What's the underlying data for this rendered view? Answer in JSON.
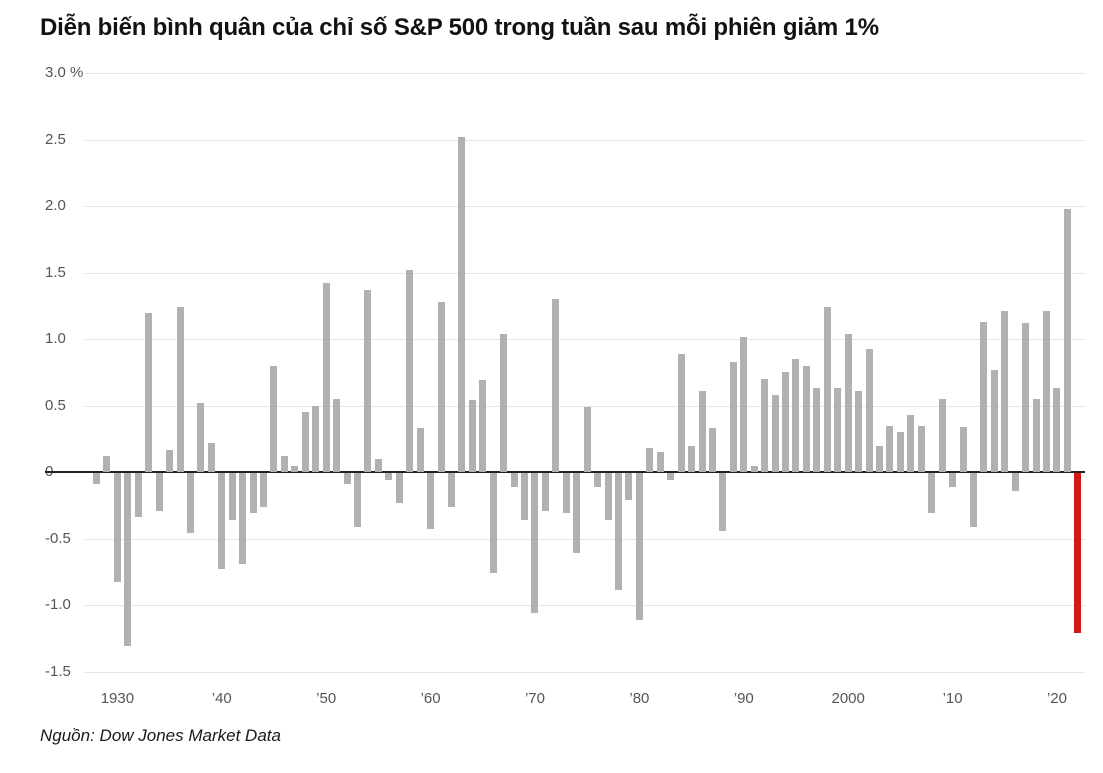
{
  "title": "Diễn biến bình quân của chỉ số S&P 500 trong tuần sau mỗi phiên giảm 1%",
  "source": "Nguồn: Dow Jones Market Data",
  "chart_data": {
    "type": "bar",
    "title": "Diễn biến bình quân của chỉ số S&P 500 trong tuần sau mỗi phiên giảm 1%",
    "xlabel": "",
    "ylabel": "%",
    "ylim": [
      -1.5,
      3.0
    ],
    "grid": true,
    "legend": "none",
    "start_year": 1928,
    "end_year": 2022,
    "values": [
      -0.08,
      0.12,
      -0.82,
      -1.3,
      -0.33,
      1.2,
      -0.28,
      0.17,
      1.24,
      -0.45,
      0.52,
      0.22,
      -0.72,
      -0.35,
      -0.68,
      -0.3,
      -0.25,
      0.8,
      0.12,
      0.05,
      0.45,
      0.5,
      1.42,
      0.55,
      -0.08,
      -0.4,
      1.37,
      0.1,
      -0.05,
      -0.22,
      1.52,
      0.33,
      -0.42,
      1.28,
      -0.25,
      2.52,
      0.54,
      0.69,
      -0.75,
      1.04,
      -0.1,
      -0.35,
      -1.05,
      -0.28,
      1.3,
      -0.3,
      -0.6,
      0.49,
      -0.1,
      -0.35,
      -0.88,
      -0.2,
      -1.1,
      0.18,
      0.15,
      -0.05,
      0.89,
      0.2,
      0.61,
      0.33,
      -0.43,
      0.83,
      1.02,
      0.05,
      0.7,
      0.58,
      0.75,
      0.85,
      0.8,
      0.63,
      1.24,
      0.63,
      1.04,
      0.61,
      0.93,
      0.2,
      0.35,
      0.3,
      0.43,
      0.35,
      -0.3,
      0.55,
      -0.1,
      0.34,
      -0.4,
      1.13,
      0.77,
      1.21,
      -0.13,
      1.12,
      0.55,
      1.21,
      0.63,
      1.98,
      -1.2
    ],
    "highlight_year": 2022,
    "yticks": [
      {
        "value": 3.0,
        "label": "3.0 %"
      },
      {
        "value": 2.5,
        "label": "2.5"
      },
      {
        "value": 2.0,
        "label": "2.0"
      },
      {
        "value": 1.5,
        "label": "1.5"
      },
      {
        "value": 1.0,
        "label": "1.0"
      },
      {
        "value": 0.5,
        "label": "0.5"
      },
      {
        "value": 0,
        "label": "0"
      },
      {
        "value": -0.5,
        "label": "-0.5"
      },
      {
        "value": -1.0,
        "label": "-1.0"
      },
      {
        "value": -1.5,
        "label": "-1.5"
      }
    ],
    "xticks": [
      {
        "year": 1930,
        "label": "1930"
      },
      {
        "year": 1940,
        "label": "’40"
      },
      {
        "year": 1950,
        "label": "’50"
      },
      {
        "year": 1960,
        "label": "’60"
      },
      {
        "year": 1970,
        "label": "’70"
      },
      {
        "year": 1980,
        "label": "’80"
      },
      {
        "year": 1990,
        "label": "’90"
      },
      {
        "year": 2000,
        "label": "2000"
      },
      {
        "year": 2010,
        "label": "’10"
      },
      {
        "year": 2020,
        "label": "’20"
      }
    ],
    "bar_color": "#b1b1b1",
    "highlight_color": "#d01a1a",
    "grid_color": "#e4e4e4",
    "axis_color": "#222222"
  }
}
